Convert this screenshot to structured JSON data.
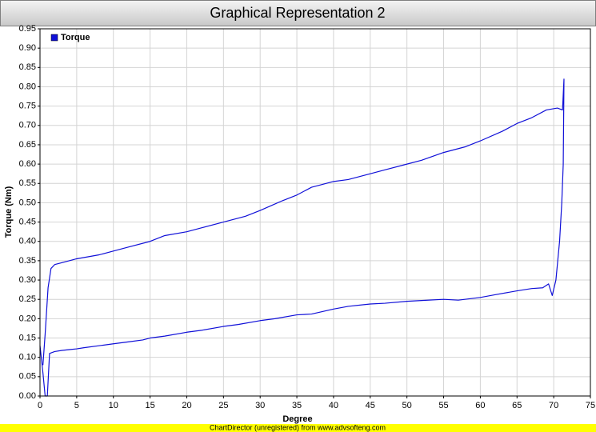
{
  "chart_data": {
    "type": "line",
    "title": "Graphical Representation 2",
    "x_label": "Degree",
    "y_label": "Torque (Nm)",
    "x": [
      0,
      0.4,
      0.7,
      1.0,
      1.3,
      2,
      3,
      4,
      5,
      6,
      8,
      10,
      12,
      14,
      15,
      17,
      20,
      22,
      25,
      27,
      30,
      32,
      35,
      37,
      40,
      42,
      45,
      47,
      50,
      52,
      55,
      57,
      60,
      62,
      65,
      67,
      68.5,
      69.3,
      69.8,
      70.3,
      70.8,
      71.1,
      71.3,
      71.4,
      71.2,
      70.5,
      69,
      67,
      65,
      63,
      60,
      58,
      55,
      52,
      50,
      47,
      45,
      42,
      40,
      38,
      37,
      35,
      33,
      30,
      28,
      25,
      22,
      20,
      17,
      15,
      12,
      10,
      8,
      5,
      3,
      2,
      1.5,
      1.1,
      0.7,
      0.4
    ],
    "series": [
      {
        "name": "Torque",
        "color": "#1010d8",
        "values": [
          0.13,
          0.06,
          0.0,
          0.0,
          0.11,
          0.115,
          0.118,
          0.12,
          0.122,
          0.125,
          0.13,
          0.135,
          0.14,
          0.145,
          0.15,
          0.155,
          0.165,
          0.17,
          0.18,
          0.185,
          0.195,
          0.2,
          0.21,
          0.212,
          0.225,
          0.232,
          0.238,
          0.24,
          0.245,
          0.247,
          0.25,
          0.248,
          0.255,
          0.262,
          0.272,
          0.278,
          0.28,
          0.29,
          0.26,
          0.3,
          0.4,
          0.5,
          0.6,
          0.82,
          0.74,
          0.745,
          0.74,
          0.72,
          0.705,
          0.685,
          0.66,
          0.645,
          0.63,
          0.61,
          0.6,
          0.585,
          0.575,
          0.56,
          0.555,
          0.545,
          0.54,
          0.52,
          0.505,
          0.48,
          0.465,
          0.45,
          0.435,
          0.425,
          0.415,
          0.4,
          0.385,
          0.375,
          0.365,
          0.355,
          0.345,
          0.34,
          0.33,
          0.28,
          0.16,
          0.08
        ]
      }
    ],
    "xlim": [
      0,
      75
    ],
    "xticks": [
      0,
      5,
      10,
      15,
      20,
      25,
      30,
      35,
      40,
      45,
      50,
      55,
      60,
      65,
      70,
      75
    ],
    "ylim": [
      0,
      0.95
    ],
    "yticks": [
      {
        "value": 0,
        "label": "0.00"
      },
      {
        "value": 0.05,
        "label": "0.05"
      },
      {
        "value": 0.1,
        "label": "0.10"
      },
      {
        "value": 0.15,
        "label": "0.15"
      },
      {
        "value": 0.2,
        "label": "0.20"
      },
      {
        "value": 0.25,
        "label": "0.25"
      },
      {
        "value": 0.3,
        "label": "0.30"
      },
      {
        "value": 0.35,
        "label": "0.35"
      },
      {
        "value": 0.4,
        "label": "0.40"
      },
      {
        "value": 0.45,
        "label": "0.45"
      },
      {
        "value": 0.5,
        "label": "0.50"
      },
      {
        "value": 0.55,
        "label": "0.55"
      },
      {
        "value": 0.6,
        "label": "0.60"
      },
      {
        "value": 0.65,
        "label": "0.65"
      },
      {
        "value": 0.7,
        "label": "0.70"
      },
      {
        "value": 0.75,
        "label": "0.75"
      },
      {
        "value": 0.8,
        "label": "0.80"
      },
      {
        "value": 0.85,
        "label": "0.85"
      },
      {
        "value": 0.9,
        "label": "0.90"
      },
      {
        "value": 0.95,
        "label": "0.95"
      }
    ],
    "grid": true,
    "legend_position": "top-left"
  },
  "footer": "ChartDirector (unregistered) from www.advsofteng.com"
}
